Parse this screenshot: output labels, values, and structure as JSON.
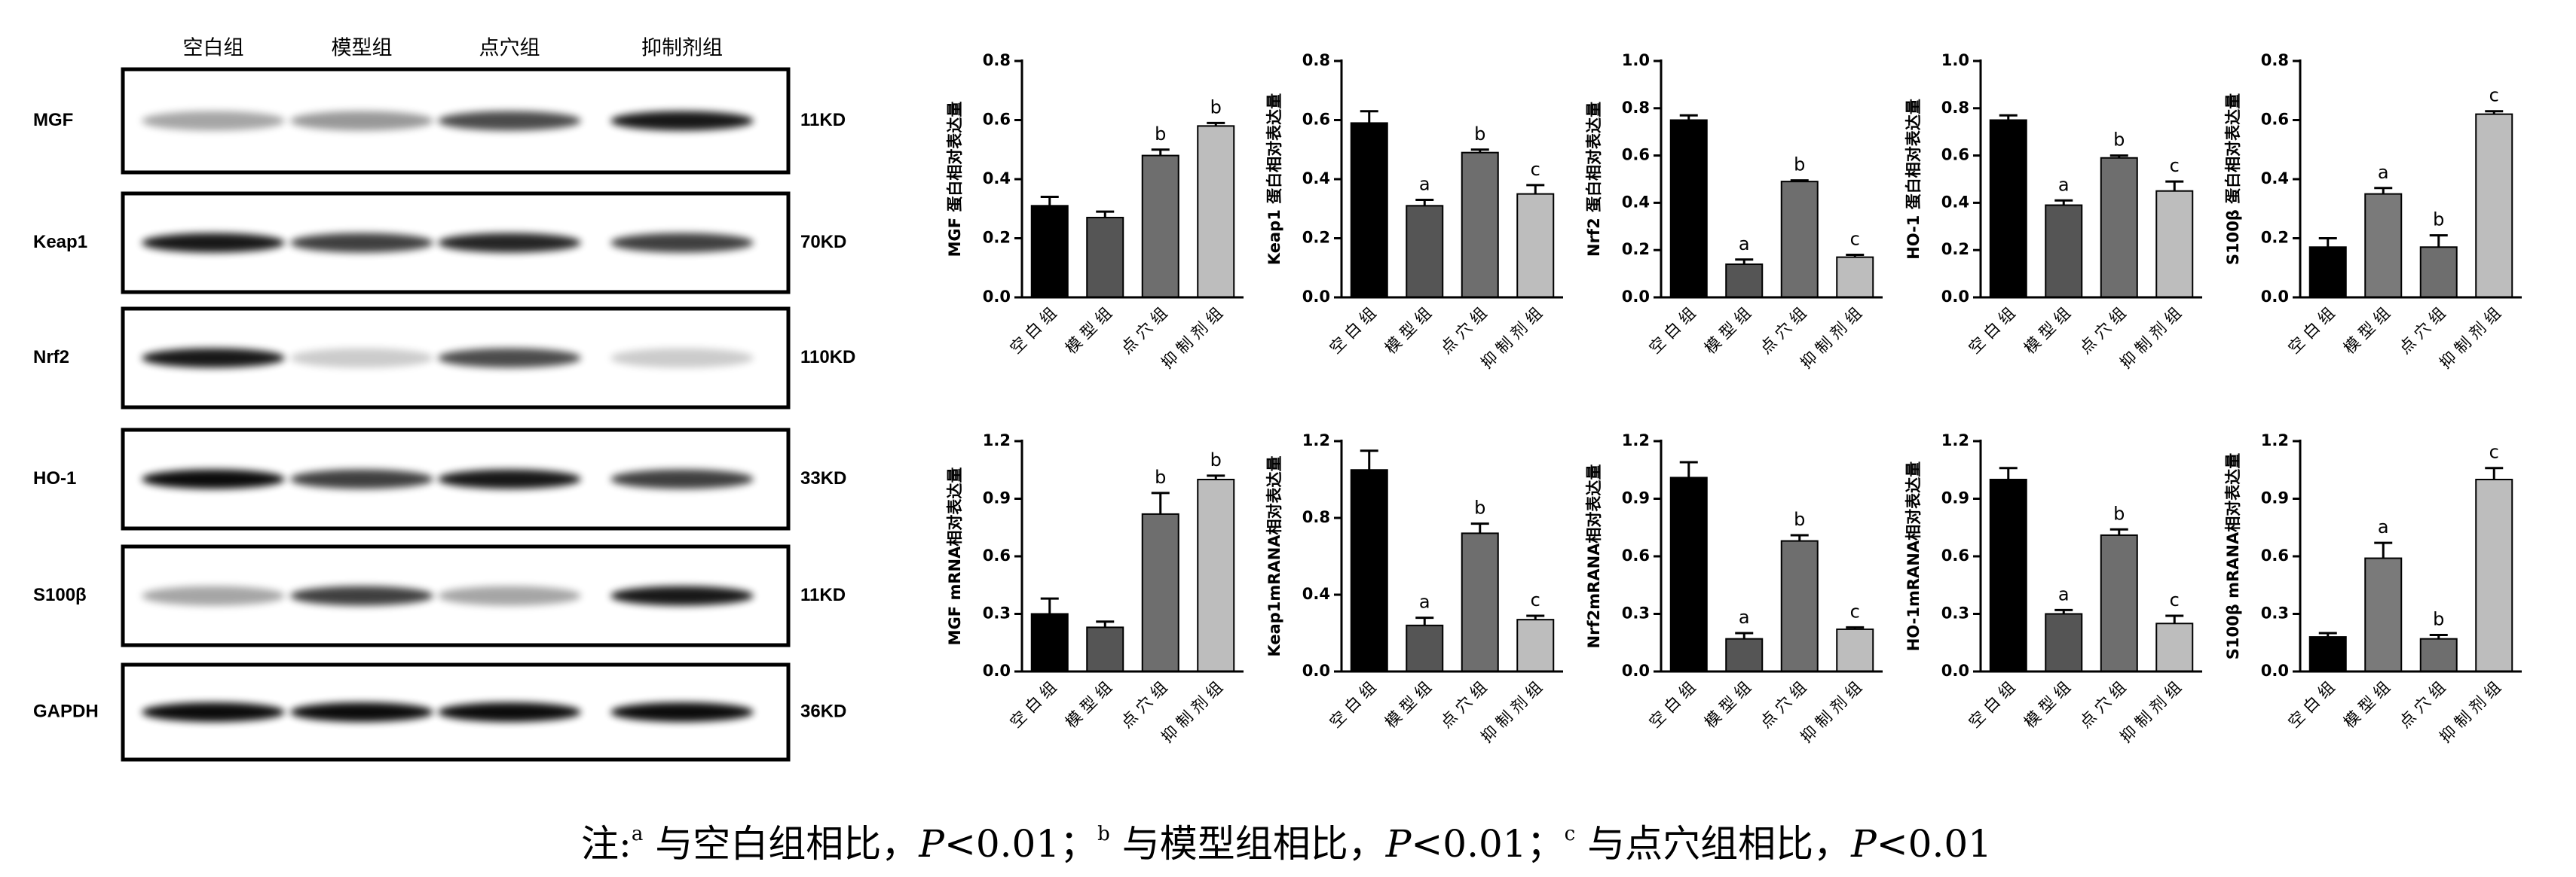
{
  "blot": {
    "columns": [
      "空白组",
      "模型组",
      "点穴组",
      "抑制剂组"
    ],
    "rows": [
      {
        "label": "MGF",
        "size": "11KD"
      },
      {
        "label": "Keap1",
        "size": "70KD"
      },
      {
        "label": "Nrf2",
        "size": "110KD"
      },
      {
        "label": "HO-1",
        "size": "33KD"
      },
      {
        "label": "S100β",
        "size": "11KD"
      },
      {
        "label": "GAPDH",
        "size": "36KD"
      }
    ]
  },
  "chart_data": [
    {
      "type": "bar",
      "ylabel": "MGF 蛋白相对表达量",
      "categories": [
        "空 白 组",
        "模 型 组",
        "点 穴 组",
        "抑 制 剂 组"
      ],
      "colors": [
        "#000000",
        "#555555",
        "#6e6e6e",
        "#bdbdbd"
      ],
      "values": [
        0.31,
        0.27,
        0.48,
        0.58
      ],
      "errors": [
        0.03,
        0.02,
        0.02,
        0.01
      ],
      "annotations": [
        null,
        null,
        "b",
        "b"
      ],
      "ylim": [
        0,
        0.8
      ],
      "yticks": [
        {
          "value": 0,
          "label": "0.0"
        },
        0.2,
        0.4,
        0.6,
        0.8
      ]
    },
    {
      "type": "bar",
      "ylabel": "Keap1 蛋白相对表达量",
      "categories": [
        "空 白 组",
        "模 型 组",
        "点 穴 组",
        "抑 制 剂 组"
      ],
      "colors": [
        "#000000",
        "#555555",
        "#6e6e6e",
        "#bdbdbd"
      ],
      "values": [
        0.59,
        0.31,
        0.49,
        0.35
      ],
      "errors": [
        0.04,
        0.02,
        0.01,
        0.03
      ],
      "annotations": [
        null,
        "a",
        "b",
        "c"
      ],
      "ylim": [
        0,
        0.8
      ],
      "yticks": [
        {
          "value": 0,
          "label": "0.0"
        },
        0.2,
        0.4,
        0.6,
        0.8
      ]
    },
    {
      "type": "bar",
      "ylabel": "Nrf2 蛋白相对表达量",
      "categories": [
        "空 白 组",
        "模 型 组",
        "点 穴 组",
        "抑 制 剂 组"
      ],
      "colors": [
        "#000000",
        "#555555",
        "#6e6e6e",
        "#bdbdbd"
      ],
      "values": [
        0.75,
        0.14,
        0.49,
        0.17
      ],
      "errors": [
        0.02,
        0.02,
        0.005,
        0.01
      ],
      "annotations": [
        null,
        "a",
        "b",
        "c"
      ],
      "ylim": [
        0,
        1
      ],
      "yticks": [
        {
          "value": 0,
          "label": "0.0"
        },
        0.2,
        0.4,
        0.6,
        0.8,
        {
          "value": 1,
          "label": "1.0"
        }
      ]
    },
    {
      "type": "bar",
      "ylabel": "HO-1 蛋白相对表达量",
      "categories": [
        "空 白 组",
        "模 型 组",
        "点 穴 组",
        "抑 制 剂 组"
      ],
      "colors": [
        "#000000",
        "#555555",
        "#6e6e6e",
        "#bdbdbd"
      ],
      "values": [
        0.75,
        0.39,
        0.59,
        0.45
      ],
      "errors": [
        0.02,
        0.02,
        0.01,
        0.04
      ],
      "annotations": [
        null,
        "a",
        "b",
        "c"
      ],
      "ylim": [
        0,
        1
      ],
      "yticks": [
        {
          "value": 0,
          "label": "0.0"
        },
        0.2,
        0.4,
        0.6,
        0.8,
        {
          "value": 1,
          "label": "1.0"
        }
      ]
    },
    {
      "type": "bar",
      "ylabel": "S100β 蛋白相对表达量",
      "categories": [
        "空 白 组",
        "模 型 组",
        "点 穴 组",
        "抑 制 剂 组"
      ],
      "colors": [
        "#000000",
        "#7a7a7a",
        "#6e6e6e",
        "#bdbdbd"
      ],
      "values": [
        0.17,
        0.35,
        0.17,
        0.62
      ],
      "errors": [
        0.03,
        0.02,
        0.04,
        0.01
      ],
      "annotations": [
        null,
        "a",
        "b",
        "c"
      ],
      "ylim": [
        0,
        0.8
      ],
      "yticks": [
        {
          "value": 0,
          "label": "0.0"
        },
        0.2,
        0.4,
        0.6,
        0.8
      ]
    },
    {
      "type": "bar",
      "ylabel": "MGF mRNA相对表达量",
      "categories": [
        "空 白 组",
        "模 型 组",
        "点 穴 组",
        "抑 制 剂 组"
      ],
      "colors": [
        "#000000",
        "#555555",
        "#6e6e6e",
        "#bdbdbd"
      ],
      "values": [
        0.3,
        0.23,
        0.82,
        1.0
      ],
      "errors": [
        0.08,
        0.03,
        0.11,
        0.02
      ],
      "annotations": [
        null,
        null,
        "b",
        "b"
      ],
      "ylim": [
        0,
        1.2
      ],
      "yticks": [
        {
          "value": 0,
          "label": "0.0"
        },
        0.3,
        0.6,
        0.9,
        1.2
      ]
    },
    {
      "type": "bar",
      "ylabel": "Keap1mRANA相对表达量",
      "categories": [
        "空 白 组",
        "模 型 组",
        "点 穴 组",
        "抑 制 剂 组"
      ],
      "colors": [
        "#000000",
        "#555555",
        "#6e6e6e",
        "#bdbdbd"
      ],
      "values": [
        1.05,
        0.24,
        0.72,
        0.27
      ],
      "errors": [
        0.1,
        0.04,
        0.05,
        0.02
      ],
      "annotations": [
        null,
        "a",
        "b",
        "c"
      ],
      "ylim": [
        0,
        1.2
      ],
      "yticks": [
        {
          "value": 0,
          "label": "0.0"
        },
        0.4,
        0.8,
        1.2
      ]
    },
    {
      "type": "bar",
      "ylabel": "Nrf2mRANA相对表达量",
      "categories": [
        "空 白 组",
        "模 型 组",
        "点 穴 组",
        "抑 制 剂 组"
      ],
      "colors": [
        "#000000",
        "#555555",
        "#6e6e6e",
        "#bdbdbd"
      ],
      "values": [
        1.01,
        0.17,
        0.68,
        0.22
      ],
      "errors": [
        0.08,
        0.03,
        0.03,
        0.01
      ],
      "annotations": [
        null,
        "a",
        "b",
        "c"
      ],
      "ylim": [
        0,
        1.2
      ],
      "yticks": [
        {
          "value": 0,
          "label": "0.0"
        },
        0.3,
        0.6,
        0.9,
        1.2
      ]
    },
    {
      "type": "bar",
      "ylabel": "HO-1mRANA相对表达量",
      "categories": [
        "空 白 组",
        "模 型 组",
        "点 穴 组",
        "抑 制 剂 组"
      ],
      "colors": [
        "#000000",
        "#555555",
        "#6e6e6e",
        "#bdbdbd"
      ],
      "values": [
        1.0,
        0.3,
        0.71,
        0.25
      ],
      "errors": [
        0.06,
        0.02,
        0.03,
        0.04
      ],
      "annotations": [
        null,
        "a",
        "b",
        "c"
      ],
      "ylim": [
        0,
        1.2
      ],
      "yticks": [
        {
          "value": 0,
          "label": "0.0"
        },
        0.3,
        0.6,
        0.9,
        1.2
      ]
    },
    {
      "type": "bar",
      "ylabel": "S100β mRANA相对表达量",
      "categories": [
        "空 白 组",
        "模 型 组",
        "点 穴 组",
        "抑 制 剂 组"
      ],
      "colors": [
        "#000000",
        "#7a7a7a",
        "#6e6e6e",
        "#bdbdbd"
      ],
      "values": [
        0.18,
        0.59,
        0.17,
        1.0
      ],
      "errors": [
        0.02,
        0.08,
        0.02,
        0.06
      ],
      "annotations": [
        null,
        "a",
        "b",
        "c"
      ],
      "ylim": [
        0,
        1.2
      ],
      "yticks": [
        {
          "value": 0,
          "label": "0.0"
        },
        0.3,
        0.6,
        0.9,
        1.2
      ]
    }
  ],
  "note": {
    "prefix": "注:",
    "items": [
      {
        "sup": "a",
        "text": " 与空白组相比，",
        "stat": "P",
        "value": "<0.01；"
      },
      {
        "sup": "b",
        "text": " 与模型组相比，",
        "stat": "P",
        "value": "<0.01；"
      },
      {
        "sup": "c",
        "text": " 与点穴组相比，",
        "stat": "P",
        "value": "<0.01"
      }
    ]
  }
}
